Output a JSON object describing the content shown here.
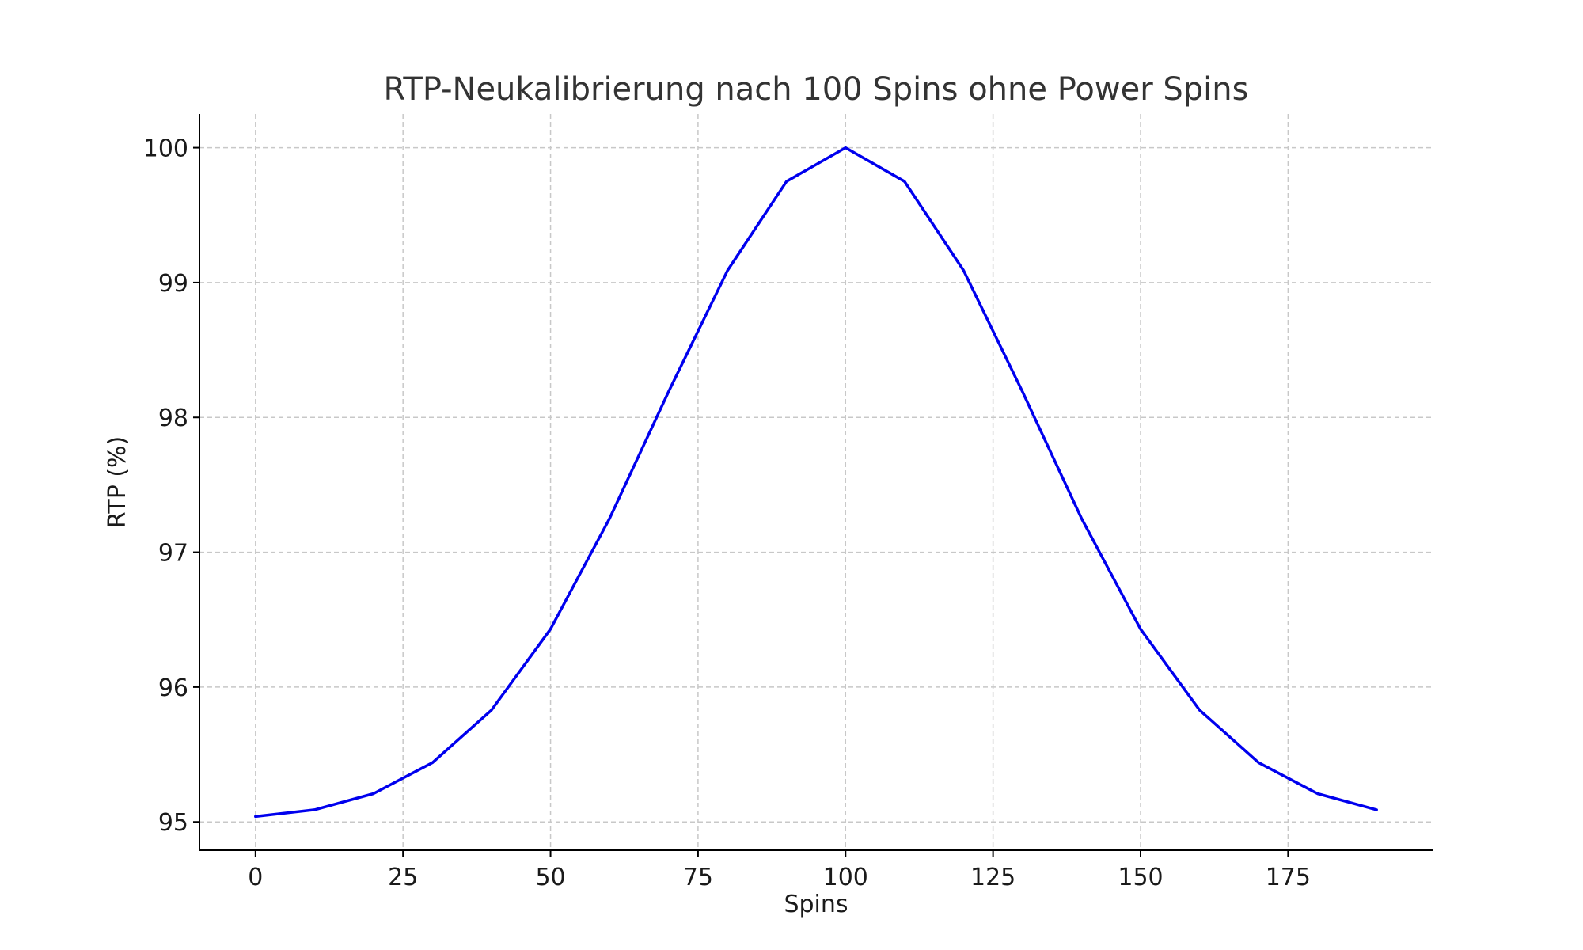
{
  "chart_data": {
    "type": "line",
    "title": "RTP-Neukalibrierung nach 100 Spins ohne Power Spins",
    "xlabel": "Spins",
    "ylabel": "RTP (%)",
    "xlim": [
      -9.5,
      199.5
    ],
    "ylim": [
      94.79,
      100.25
    ],
    "xticks": [
      0,
      25,
      50,
      75,
      100,
      125,
      150,
      175
    ],
    "yticks": [
      95,
      96,
      97,
      98,
      99,
      100
    ],
    "grid": true,
    "series": [
      {
        "color": "#0000ee",
        "x": [
          0,
          10,
          20,
          30,
          40,
          50,
          60,
          70,
          80,
          90,
          100,
          110,
          120,
          130,
          140,
          150,
          160,
          170,
          180,
          190
        ],
        "y": [
          95.04,
          95.09,
          95.21,
          95.44,
          95.83,
          96.43,
          97.25,
          98.19,
          99.09,
          99.75,
          100.0,
          99.75,
          99.09,
          98.19,
          97.25,
          96.43,
          95.83,
          95.44,
          95.21,
          95.09
        ]
      }
    ]
  }
}
